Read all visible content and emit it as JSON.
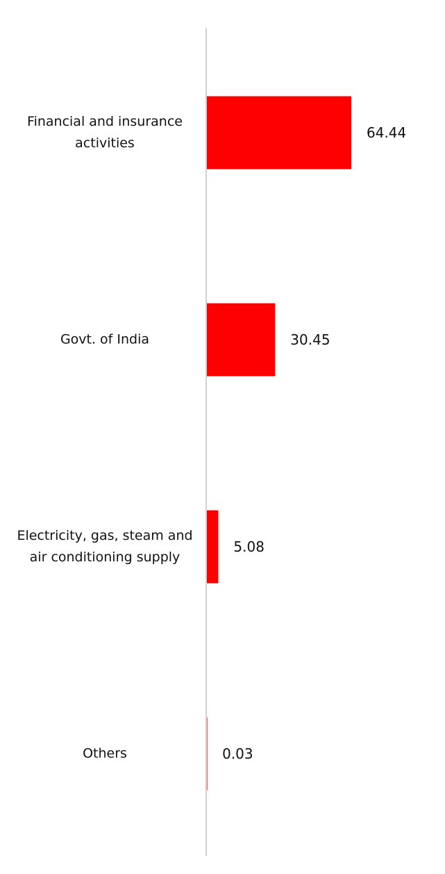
{
  "chart_data": {
    "type": "barh",
    "categories": [
      "Financial and insurance activities",
      "Govt. of India",
      "Electricity, gas, steam and air conditioning supply",
      "Others"
    ],
    "values": [
      64.44,
      30.45,
      5.08,
      0.03
    ],
    "color": "#ff0000"
  }
}
